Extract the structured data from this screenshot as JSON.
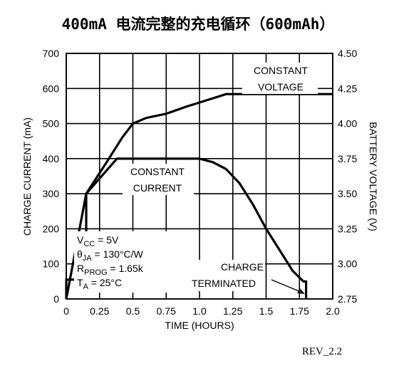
{
  "title": "400mA 电流完整的充电循环（600mAh）",
  "footer": "REV_2.2",
  "chart_data": {
    "type": "line",
    "title": "400mA 电流完整的充电循环（600mAh）",
    "xlabel": "TIME (HOURS)",
    "ylabel_left": "CHARGE CURRENT (mA)",
    "ylabel_right": "BATTERY VOLTAGE (V)",
    "xlim": [
      0,
      2.0
    ],
    "ylim_left": [
      0,
      700
    ],
    "ylim_right": [
      2.75,
      4.5
    ],
    "x_ticks": [
      "0",
      "0.25",
      "0.5",
      "0.75",
      "1.0",
      "1.25",
      "1.5",
      "1.75",
      "2.0"
    ],
    "x_tick_values": [
      0,
      0.25,
      0.5,
      0.75,
      1.0,
      1.25,
      1.5,
      1.75,
      2.0
    ],
    "y_ticks_left": [
      "0",
      "100",
      "200",
      "300",
      "400",
      "500",
      "600",
      "700"
    ],
    "y_tick_values_left": [
      0,
      100,
      200,
      300,
      400,
      500,
      600,
      700
    ],
    "y_ticks_right": [
      "2.75",
      "3.00",
      "3.25",
      "3.50",
      "3.75",
      "4.00",
      "4.25",
      "4.50"
    ],
    "y_tick_values_right": [
      2.75,
      3.0,
      3.25,
      3.5,
      3.75,
      4.0,
      4.25,
      4.5
    ],
    "grid": true,
    "series": [
      {
        "axis": "left",
        "x": [
          0,
          0,
          0.15,
          0.15,
          0.38,
          0.5,
          0.75,
          1.0,
          1.1,
          1.2,
          1.3,
          1.4,
          1.5,
          1.6,
          1.7,
          1.78,
          1.8,
          1.8
        ],
        "y": [
          0,
          55,
          55,
          300,
          400,
          400,
          400,
          400,
          390,
          370,
          330,
          270,
          200,
          140,
          80,
          50,
          50,
          0
        ]
      },
      {
        "axis": "right",
        "x": [
          0,
          0.15,
          0.3,
          0.42,
          0.5,
          0.6,
          0.75,
          0.9,
          1.0,
          1.1,
          1.2,
          1.4,
          1.6,
          1.8,
          2.0
        ],
        "y": [
          2.75,
          3.5,
          3.72,
          3.9,
          4.0,
          4.04,
          4.07,
          4.12,
          4.15,
          4.18,
          4.21,
          4.21,
          4.21,
          4.21,
          4.21
        ]
      }
    ],
    "annotations": {
      "constant_voltage": [
        "CONSTANT",
        "VOLTAGE"
      ],
      "constant_current": [
        "CONSTANT",
        "CURRENT"
      ],
      "charge_terminated": [
        "CHARGE",
        "TERMINATED"
      ],
      "conditions": [
        {
          "main": "V",
          "sub": "CC",
          "rest": " = 5V"
        },
        {
          "main": "θ",
          "sub": "JA",
          "rest": " = 130°C/W"
        },
        {
          "main": "R",
          "sub": "PROG",
          "rest": " = 1.65k"
        },
        {
          "main": "T",
          "sub": "A",
          "rest": " = 25°C"
        }
      ]
    }
  }
}
